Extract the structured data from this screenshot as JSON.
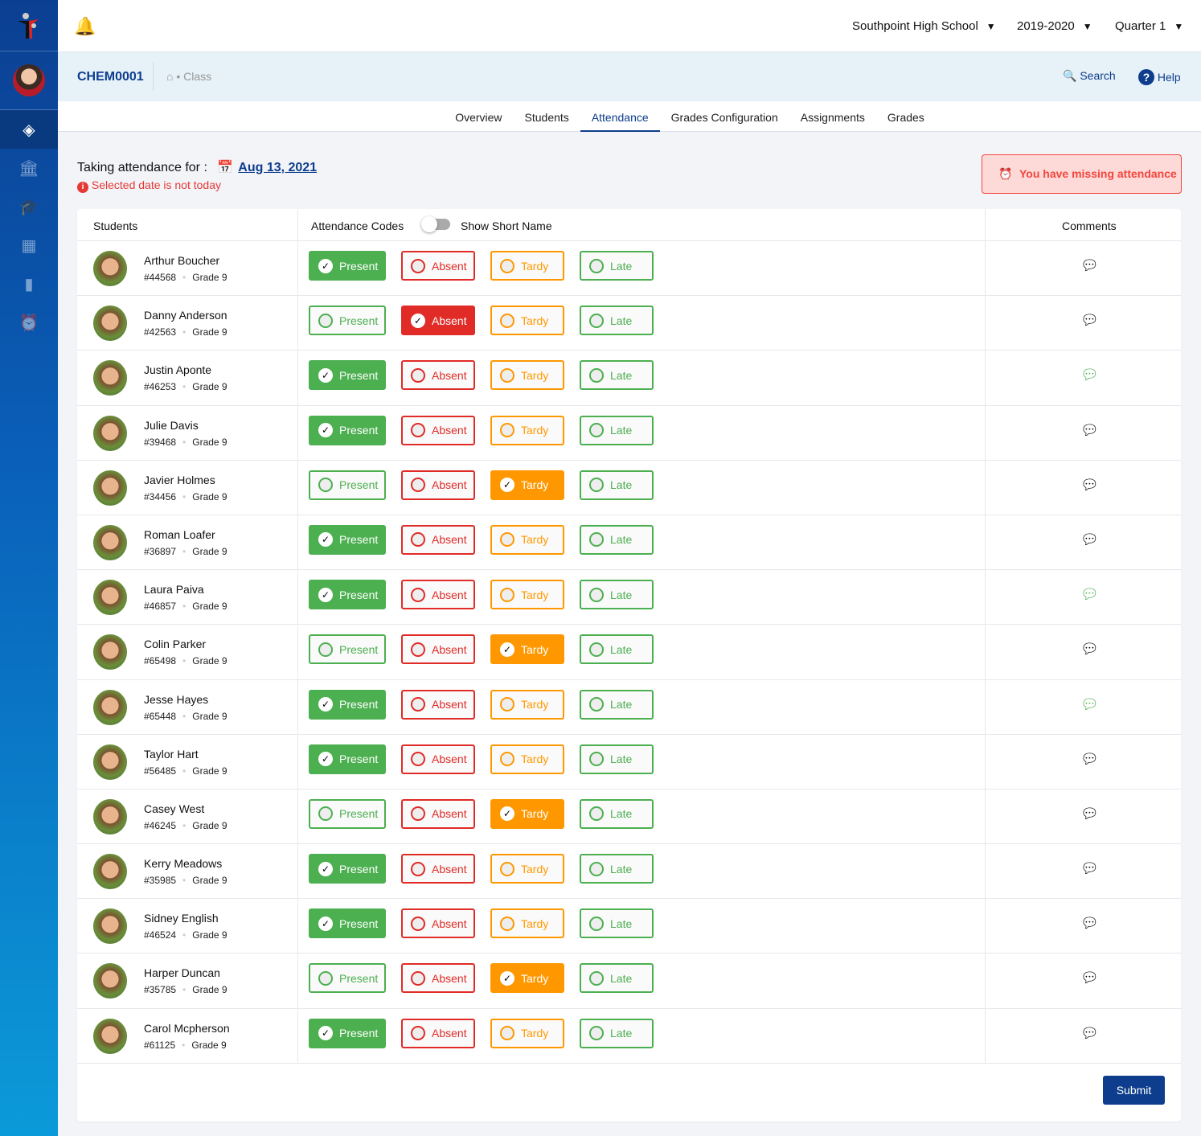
{
  "header": {
    "school": "Southpoint High School",
    "year": "2019-2020",
    "term": "Quarter 1"
  },
  "subheader": {
    "class_code": "CHEM0001",
    "breadcrumb": "Class",
    "search": "Search",
    "help": "Help"
  },
  "tabs": [
    "Overview",
    "Students",
    "Attendance",
    "Grades Configuration",
    "Assignments",
    "Grades"
  ],
  "active_tab": "Attendance",
  "attendance": {
    "label": "Taking attendance for :",
    "date": "Aug 13, 2021",
    "warning": "Selected date is not today",
    "missing": "You have missing attendance"
  },
  "table": {
    "col_students": "Students",
    "col_codes": "Attendance Codes",
    "toggle_label": "Show Short Name",
    "toggle_on": false,
    "col_comments": "Comments"
  },
  "codes": [
    {
      "label": "Present",
      "color": "#4caf50"
    },
    {
      "label": "Absent",
      "color": "#e02b27"
    },
    {
      "label": "Tardy",
      "color": "#ff9800"
    },
    {
      "label": "Late",
      "color": "#4caf50"
    }
  ],
  "students": [
    {
      "name": "Arthur Boucher",
      "id": "#44568",
      "grade": "Grade 9",
      "status": "Present",
      "comment": false
    },
    {
      "name": "Danny Anderson",
      "id": "#42563",
      "grade": "Grade 9",
      "status": "Absent",
      "comment": false
    },
    {
      "name": "Justin Aponte",
      "id": "#46253",
      "grade": "Grade 9",
      "status": "Present",
      "comment": true
    },
    {
      "name": "Julie Davis",
      "id": "#39468",
      "grade": "Grade 9",
      "status": "Present",
      "comment": false
    },
    {
      "name": "Javier Holmes",
      "id": "#34456",
      "grade": "Grade 9",
      "status": "Tardy",
      "comment": false
    },
    {
      "name": "Roman Loafer",
      "id": "#36897",
      "grade": "Grade 9",
      "status": "Present",
      "comment": false
    },
    {
      "name": "Laura Paiva",
      "id": "#46857",
      "grade": "Grade 9",
      "status": "Present",
      "comment": true
    },
    {
      "name": "Colin Parker",
      "id": "#65498",
      "grade": "Grade 9",
      "status": "Tardy",
      "comment": false
    },
    {
      "name": "Jesse Hayes",
      "id": "#65448",
      "grade": "Grade 9",
      "status": "Present",
      "comment": true
    },
    {
      "name": "Taylor Hart",
      "id": "#56485",
      "grade": "Grade 9",
      "status": "Present",
      "comment": false
    },
    {
      "name": "Casey West",
      "id": "#46245",
      "grade": "Grade 9",
      "status": "Tardy",
      "comment": false
    },
    {
      "name": "Kerry Meadows",
      "id": "#35985",
      "grade": "Grade 9",
      "status": "Present",
      "comment": false
    },
    {
      "name": "Sidney English",
      "id": "#46524",
      "grade": "Grade 9",
      "status": "Present",
      "comment": false
    },
    {
      "name": "Harper Duncan",
      "id": "#35785",
      "grade": "Grade 9",
      "status": "Tardy",
      "comment": false
    },
    {
      "name": "Carol Mcpherson",
      "id": "#61125",
      "grade": "Grade 9",
      "status": "Present",
      "comment": false
    }
  ],
  "submit": "Submit"
}
